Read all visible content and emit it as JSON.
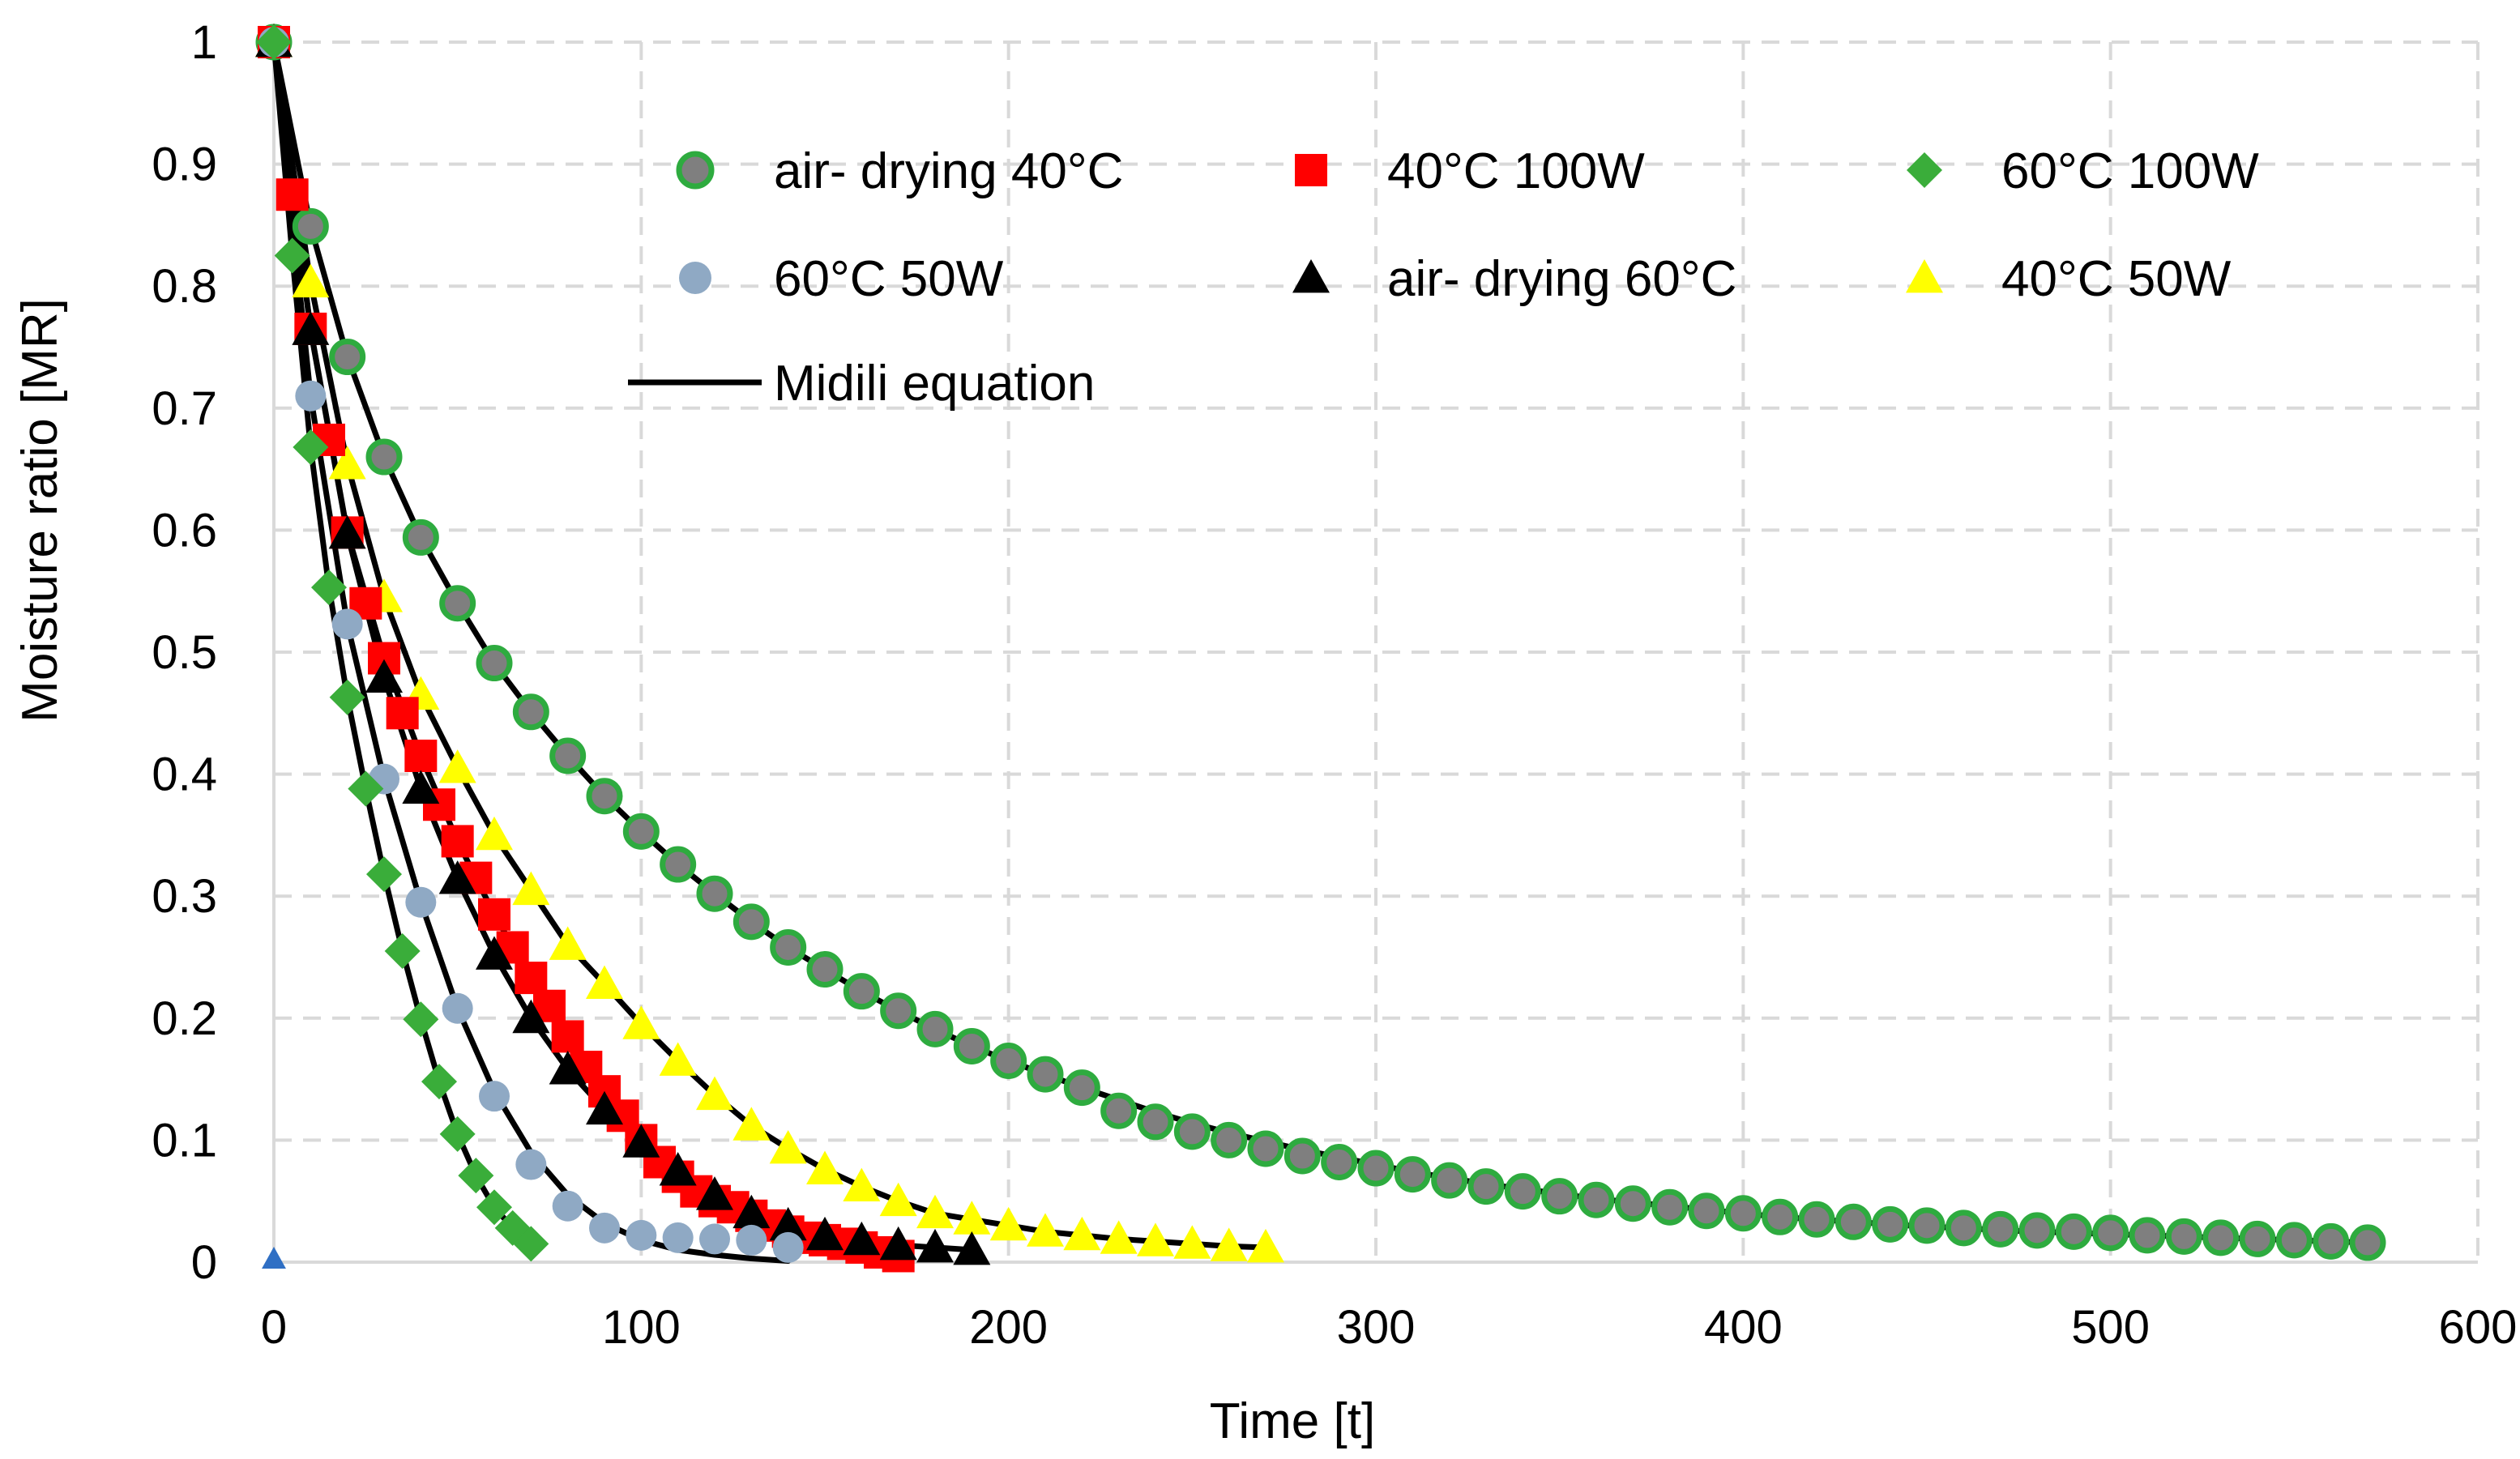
{
  "chart_data": {
    "type": "scatter",
    "title": "",
    "xlabel": "Time [t]",
    "ylabel": "Moisture ratio [MR]",
    "xlim": [
      0,
      600
    ],
    "ylim": [
      0,
      1
    ],
    "x_ticks": [
      0,
      100,
      200,
      300,
      400,
      500,
      600
    ],
    "y_ticks": [
      0,
      0.1,
      0.2,
      0.3,
      0.4,
      0.5,
      0.6,
      0.7,
      0.8,
      0.9,
      1
    ],
    "x_tick_labels": [
      "0",
      "100",
      "200",
      "300",
      "400",
      "500",
      "600"
    ],
    "y_tick_labels": [
      "0",
      "0.1",
      "0.2",
      "0.3",
      "0.4",
      "0.5",
      "0.6",
      "0.7",
      "0.8",
      "0.9",
      "1"
    ],
    "grid": true,
    "legend_position": "top-center",
    "fit_label": "Midili equation",
    "fit_color": "#000000",
    "series": [
      {
        "name": "air- drying 40°C",
        "marker": "circle",
        "fill": "#7f7f7f",
        "stroke": "#2eab3f",
        "x": [
          0,
          10,
          20,
          30,
          40,
          50,
          60,
          70,
          80,
          90,
          100,
          110,
          120,
          130,
          140,
          150,
          160,
          170,
          180,
          190,
          200,
          210,
          220,
          230,
          240,
          250,
          260,
          270,
          280,
          290,
          300,
          310,
          320,
          330,
          340,
          350,
          360,
          370,
          380,
          390,
          400,
          410,
          420,
          430,
          440,
          450,
          460,
          470,
          480,
          490,
          500,
          510,
          520,
          530,
          540,
          550,
          560,
          570
        ],
        "values": [
          1,
          0.849,
          0.742,
          0.66,
          0.594,
          0.54,
          0.491,
          0.451,
          0.415,
          0.382,
          0.353,
          0.326,
          0.302,
          0.279,
          0.258,
          0.24,
          0.222,
          0.206,
          0.191,
          0.177,
          0.165,
          0.154,
          0.143,
          0.124,
          0.115,
          0.107,
          0.1,
          0.093,
          0.087,
          0.082,
          0.077,
          0.072,
          0.067,
          0.062,
          0.058,
          0.054,
          0.051,
          0.048,
          0.045,
          0.042,
          0.04,
          0.037,
          0.035,
          0.033,
          0.031,
          0.03,
          0.028,
          0.027,
          0.026,
          0.025,
          0.024,
          0.022,
          0.021,
          0.02,
          0.019,
          0.018,
          0.017,
          0.016
        ]
      },
      {
        "name": "40°C 100W",
        "marker": "square",
        "fill": "#ff0000",
        "stroke": "#ff0000",
        "x": [
          0,
          5,
          10,
          15,
          20,
          25,
          30,
          35,
          40,
          45,
          50,
          55,
          60,
          65,
          70,
          75,
          80,
          85,
          90,
          95,
          100,
          105,
          110,
          115,
          120,
          125,
          130,
          135,
          140,
          145,
          150,
          155,
          160,
          165,
          170
        ],
        "values": [
          1,
          0.875,
          0.765,
          0.674,
          0.598,
          0.54,
          0.495,
          0.45,
          0.415,
          0.375,
          0.345,
          0.315,
          0.285,
          0.258,
          0.233,
          0.21,
          0.185,
          0.16,
          0.14,
          0.12,
          0.1,
          0.082,
          0.07,
          0.058,
          0.05,
          0.045,
          0.038,
          0.03,
          0.025,
          0.02,
          0.018,
          0.015,
          0.012,
          0.008,
          0.005
        ]
      },
      {
        "name": "60°C 100W",
        "marker": "diamond",
        "fill": "#3aad3a",
        "stroke": "#3aad3a",
        "x": [
          0,
          5,
          10,
          15,
          20,
          25,
          30,
          35,
          40,
          45,
          50,
          55,
          60,
          65,
          70
        ],
        "values": [
          1,
          0.825,
          0.668,
          0.553,
          0.463,
          0.388,
          0.318,
          0.255,
          0.199,
          0.148,
          0.105,
          0.071,
          0.045,
          0.028,
          0.015
        ]
      },
      {
        "name": "60°C 50W",
        "marker": "circle",
        "fill": "#8fa9c4",
        "stroke": "#8fa9c4",
        "x": [
          0,
          10,
          20,
          30,
          40,
          50,
          60,
          70,
          80,
          90,
          100,
          110,
          120,
          130,
          140
        ],
        "values": [
          1,
          0.71,
          0.523,
          0.396,
          0.295,
          0.208,
          0.136,
          0.08,
          0.046,
          0.028,
          0.022,
          0.02,
          0.019,
          0.018,
          0.012
        ]
      },
      {
        "name": "air- drying 60°C",
        "marker": "triangle",
        "fill": "#000000",
        "stroke": "#000000",
        "x": [
          0,
          10,
          20,
          30,
          40,
          50,
          60,
          70,
          80,
          90,
          100,
          110,
          120,
          130,
          140,
          150,
          160,
          170,
          180,
          190
        ],
        "values": [
          1,
          0.764,
          0.597,
          0.479,
          0.388,
          0.314,
          0.252,
          0.2,
          0.158,
          0.125,
          0.098,
          0.075,
          0.055,
          0.04,
          0.03,
          0.022,
          0.018,
          0.014,
          0.012,
          0.01
        ]
      },
      {
        "name": "40°C 50W",
        "marker": "triangle",
        "fill": "#ffff00",
        "stroke": "#ffff00",
        "x": [
          0,
          10,
          20,
          30,
          40,
          50,
          60,
          70,
          80,
          90,
          100,
          110,
          120,
          130,
          140,
          150,
          160,
          170,
          180,
          190,
          200,
          210,
          220,
          230,
          240,
          250,
          260,
          270
        ],
        "values": [
          1,
          0.803,
          0.654,
          0.545,
          0.465,
          0.405,
          0.35,
          0.305,
          0.26,
          0.228,
          0.195,
          0.165,
          0.137,
          0.112,
          0.093,
          0.076,
          0.062,
          0.05,
          0.04,
          0.035,
          0.03,
          0.025,
          0.022,
          0.019,
          0.017,
          0.015,
          0.013,
          0.012
        ]
      }
    ],
    "fit_curves": [
      {
        "for": "air- drying 40°C",
        "x": [
          0,
          10,
          20,
          30,
          40,
          50,
          60,
          70,
          80,
          90,
          100,
          110,
          120,
          130,
          140,
          150,
          160,
          170,
          180,
          190,
          200,
          210,
          220,
          230,
          240,
          250,
          260,
          270,
          280,
          290,
          300,
          310,
          320,
          330,
          340,
          350,
          360,
          370,
          380,
          390,
          400,
          410,
          420,
          430,
          440,
          450,
          460,
          470,
          480,
          490,
          500,
          510,
          520,
          530,
          540,
          550,
          560,
          570
        ],
        "values": [
          1,
          0.849,
          0.742,
          0.66,
          0.594,
          0.54,
          0.491,
          0.451,
          0.415,
          0.382,
          0.353,
          0.326,
          0.302,
          0.279,
          0.258,
          0.24,
          0.222,
          0.206,
          0.191,
          0.177,
          0.165,
          0.154,
          0.143,
          0.133,
          0.123,
          0.114,
          0.106,
          0.099,
          0.092,
          0.086,
          0.08,
          0.074,
          0.069,
          0.064,
          0.06,
          0.056,
          0.052,
          0.049,
          0.046,
          0.043,
          0.04,
          0.037,
          0.035,
          0.033,
          0.031,
          0.029,
          0.028,
          0.026,
          0.025,
          0.024,
          0.023,
          0.022,
          0.021,
          0.02,
          0.019,
          0.018,
          0.017,
          0.016
        ]
      },
      {
        "for": "40°C 100W",
        "x": [
          0,
          10,
          20,
          30,
          40,
          50,
          60,
          70,
          80,
          90,
          100,
          110,
          120,
          130,
          140,
          150,
          160,
          170
        ],
        "values": [
          1,
          0.765,
          0.598,
          0.495,
          0.415,
          0.345,
          0.285,
          0.233,
          0.185,
          0.14,
          0.1,
          0.07,
          0.05,
          0.038,
          0.025,
          0.018,
          0.012,
          0.005
        ]
      },
      {
        "for": "60°C 100W",
        "x": [
          0,
          5,
          10,
          15,
          20,
          25,
          30,
          35,
          40,
          45,
          50,
          55,
          60,
          65,
          70
        ],
        "values": [
          1,
          0.825,
          0.668,
          0.553,
          0.463,
          0.388,
          0.318,
          0.255,
          0.199,
          0.148,
          0.105,
          0.071,
          0.045,
          0.028,
          0.015
        ]
      },
      {
        "for": "60°C 50W",
        "x": [
          0,
          10,
          20,
          30,
          40,
          50,
          60,
          70,
          80,
          90,
          100,
          110,
          120,
          130,
          140
        ],
        "values": [
          1,
          0.71,
          0.523,
          0.396,
          0.295,
          0.208,
          0.14,
          0.09,
          0.055,
          0.032,
          0.018,
          0.01,
          0.006,
          0.003,
          0.001
        ]
      },
      {
        "for": "air- drying 60°C",
        "x": [
          0,
          10,
          20,
          30,
          40,
          50,
          60,
          70,
          80,
          90,
          100,
          110,
          120,
          130,
          140,
          150,
          160,
          170,
          180,
          190
        ],
        "values": [
          1,
          0.764,
          0.597,
          0.479,
          0.388,
          0.314,
          0.252,
          0.2,
          0.158,
          0.125,
          0.098,
          0.075,
          0.055,
          0.04,
          0.03,
          0.022,
          0.018,
          0.014,
          0.012,
          0.01
        ]
      },
      {
        "for": "40°C 50W",
        "x": [
          0,
          10,
          20,
          30,
          40,
          50,
          60,
          70,
          80,
          90,
          100,
          110,
          120,
          130,
          140,
          150,
          160,
          170,
          180,
          190,
          200,
          210,
          220,
          230,
          240,
          250,
          260,
          270
        ],
        "values": [
          1,
          0.803,
          0.654,
          0.545,
          0.465,
          0.405,
          0.35,
          0.305,
          0.26,
          0.228,
          0.195,
          0.165,
          0.137,
          0.112,
          0.093,
          0.076,
          0.062,
          0.05,
          0.04,
          0.035,
          0.03,
          0.025,
          0.022,
          0.019,
          0.017,
          0.015,
          0.013,
          0.012
        ]
      }
    ],
    "extra_marker": {
      "x": 0,
      "value": 0,
      "marker": "triangle",
      "fill": "#2f6fc4"
    }
  }
}
